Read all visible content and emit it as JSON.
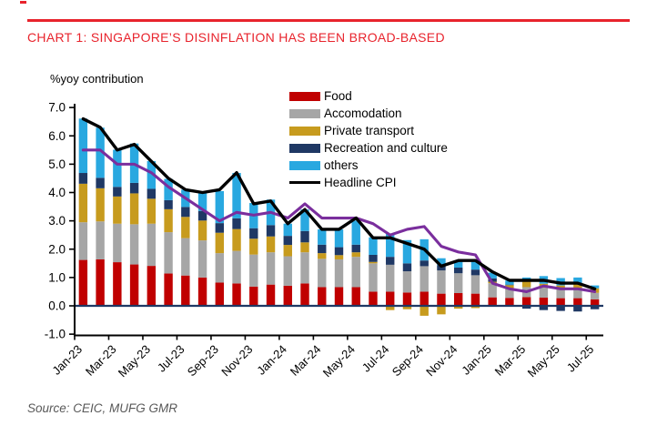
{
  "colors": {
    "accent_red": "#e8232c",
    "axis": "#000000",
    "zero_line": "#1f3864",
    "source_text": "#595959"
  },
  "footer": {
    "source": "Source: CEIC, MUFG GMR"
  },
  "chart_data": {
    "type": "bar",
    "subtype": "stacked-bars-with-lines",
    "title": "CHART 1: SINGAPORE’S DISINFLATION HAS BEEN BROAD-BASED",
    "ylabel": "%yoy contribution",
    "ylim": [
      -1.0,
      7.0
    ],
    "ytick_step": 1.0,
    "grid": false,
    "legend_position": "top-right",
    "categories": [
      "Jan-23",
      "Feb-23",
      "Mar-23",
      "Apr-23",
      "May-23",
      "Jun-23",
      "Jul-23",
      "Aug-23",
      "Sep-23",
      "Oct-23",
      "Nov-23",
      "Dec-23",
      "Jan-24",
      "Feb-24",
      "Mar-24",
      "Apr-24",
      "May-24",
      "Jun-24",
      "Jul-24",
      "Aug-24",
      "Sep-24",
      "Oct-24",
      "Nov-24",
      "Dec-24",
      "Jan-25",
      "Feb-25",
      "Mar-25",
      "Apr-25",
      "May-25",
      "Jun-25",
      "Jul-25"
    ],
    "x_tick_labels": [
      "Jan-23",
      "Mar-23",
      "May-23",
      "Jul-23",
      "Sep-23",
      "Nov-23",
      "Jan-24",
      "Mar-24",
      "May-24",
      "Jul-24",
      "Sep-24",
      "Nov-24",
      "Jan-25",
      "Mar-25",
      "May-25",
      "Jul-25"
    ],
    "series": [
      {
        "name": "Food",
        "type": "bar",
        "color": "#c00000",
        "in_legend": true,
        "values": [
          1.62,
          1.64,
          1.54,
          1.46,
          1.41,
          1.14,
          1.07,
          1.0,
          0.82,
          0.79,
          0.68,
          0.75,
          0.71,
          0.79,
          0.66,
          0.66,
          0.66,
          0.5,
          0.5,
          0.47,
          0.5,
          0.43,
          0.45,
          0.43,
          0.3,
          0.28,
          0.31,
          0.29,
          0.27,
          0.27,
          0.23
        ]
      },
      {
        "name": "Accomodation",
        "type": "bar",
        "color": "#a6a6a6",
        "in_legend": true,
        "values": [
          1.33,
          1.34,
          1.36,
          1.42,
          1.49,
          1.46,
          1.32,
          1.31,
          1.04,
          1.15,
          1.13,
          1.14,
          1.04,
          1.1,
          1.0,
          0.98,
          1.07,
          1.0,
          0.95,
          0.75,
          0.9,
          0.82,
          0.7,
          0.65,
          0.5,
          0.33,
          0.35,
          0.35,
          0.32,
          0.36,
          0.23
        ]
      },
      {
        "name": "Private transport",
        "type": "bar",
        "color": "#c79b1e",
        "in_legend": true,
        "values": [
          1.36,
          1.17,
          0.96,
          1.09,
          0.88,
          0.81,
          0.75,
          0.7,
          0.72,
          0.77,
          0.56,
          0.56,
          0.4,
          0.35,
          0.2,
          0.15,
          0.16,
          0.05,
          -0.15,
          -0.12,
          -0.35,
          -0.3,
          -0.1,
          -0.08,
          0.05,
          0.12,
          0.21,
          0.14,
          0.13,
          0.14,
          0.16
        ]
      },
      {
        "name": "Recreation and culture",
        "type": "bar",
        "color": "#1f3864",
        "in_legend": true,
        "values": [
          0.38,
          0.37,
          0.34,
          0.37,
          0.35,
          0.32,
          0.35,
          0.34,
          0.34,
          0.38,
          0.37,
          0.4,
          0.32,
          0.4,
          0.3,
          0.28,
          0.27,
          0.25,
          0.28,
          0.28,
          0.2,
          0.18,
          0.2,
          0.2,
          0.12,
          0.02,
          -0.1,
          -0.15,
          -0.18,
          -0.2,
          -0.12
        ]
      },
      {
        "name": "others",
        "type": "bar",
        "color": "#29a8e0",
        "in_legend": true,
        "values": [
          1.92,
          1.77,
          1.31,
          1.39,
          0.98,
          0.75,
          0.61,
          0.67,
          1.13,
          1.6,
          0.89,
          0.9,
          0.43,
          0.76,
          0.54,
          0.63,
          0.85,
          0.62,
          0.82,
          0.82,
          0.75,
          0.25,
          0.25,
          0.3,
          0.2,
          0.14,
          0.13,
          0.27,
          0.26,
          0.23,
          0.1
        ]
      },
      {
        "name": "Headline CPI",
        "type": "line",
        "color": "#000000",
        "in_legend": true,
        "values": [
          6.6,
          6.3,
          5.5,
          5.7,
          5.1,
          4.5,
          4.1,
          4.0,
          4.1,
          4.7,
          3.6,
          3.7,
          2.9,
          3.4,
          2.7,
          2.7,
          3.1,
          2.4,
          2.4,
          2.2,
          2.0,
          1.4,
          1.6,
          1.6,
          1.2,
          0.9,
          0.9,
          0.9,
          0.8,
          0.8,
          0.6
        ]
      },
      {
        "name": "purple-line",
        "type": "line",
        "color": "#7a2e9d",
        "in_legend": false,
        "label_visible": false,
        "values": [
          5.5,
          5.5,
          5.0,
          5.0,
          4.7,
          4.2,
          3.8,
          3.4,
          3.0,
          3.3,
          3.2,
          3.3,
          3.1,
          3.6,
          3.1,
          3.1,
          3.1,
          2.9,
          2.5,
          2.7,
          2.8,
          2.1,
          1.9,
          1.8,
          0.8,
          0.6,
          0.5,
          0.7,
          0.6,
          0.6,
          0.5
        ]
      }
    ]
  }
}
